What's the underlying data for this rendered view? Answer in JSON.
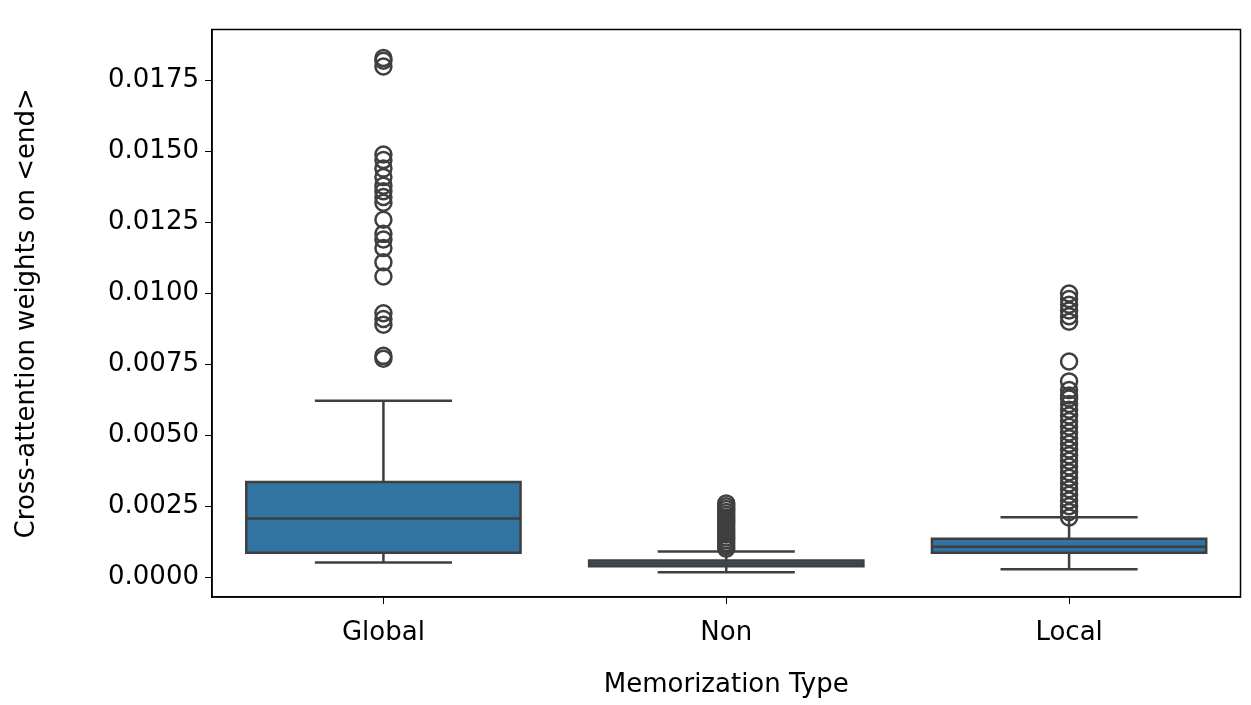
{
  "chart_data": {
    "type": "box",
    "xlabel": "Memorization Type",
    "ylabel": "Cross-attention weights on <end>",
    "categories": [
      "Global",
      "Non",
      "Local"
    ],
    "color": "#3274a1",
    "boxes": [
      {
        "low": 0.00052,
        "q1": 0.00086,
        "median": 0.00207,
        "q3": 0.00335,
        "high": 0.00622,
        "outliers": [
          0.0077,
          0.0078,
          0.0089,
          0.0091,
          0.0093,
          0.0106,
          0.0111,
          0.0116,
          0.0119,
          0.0121,
          0.0126,
          0.0132,
          0.0134,
          0.0136,
          0.0138,
          0.0141,
          0.0144,
          0.0147,
          0.0149,
          0.018,
          0.0182,
          0.0183
        ]
      },
      {
        "low": 0.00017,
        "q1": 0.00038,
        "median": 0.00048,
        "q3": 0.00059,
        "high": 0.0009,
        "outliers": [
          0.001,
          0.0011,
          0.0012,
          0.0013,
          0.0014,
          0.0015,
          0.0016,
          0.0017,
          0.0018,
          0.0019,
          0.002,
          0.0021,
          0.0022,
          0.0023,
          0.0024,
          0.0025,
          0.0026
        ]
      },
      {
        "low": 0.00028,
        "q1": 0.00086,
        "median": 0.00107,
        "q3": 0.00135,
        "high": 0.00211,
        "outliers": [
          0.0021,
          0.0023,
          0.0025,
          0.0027,
          0.0029,
          0.0031,
          0.0033,
          0.0035,
          0.0037,
          0.0039,
          0.0041,
          0.0043,
          0.0045,
          0.0047,
          0.0049,
          0.0051,
          0.0053,
          0.0055,
          0.0057,
          0.0059,
          0.0061,
          0.0063,
          0.0064,
          0.0066,
          0.0069,
          0.0076,
          0.009,
          0.0092,
          0.0094,
          0.0096,
          0.0098,
          0.01
        ]
      }
    ],
    "ylim": [
      -0.0007,
      0.0193
    ],
    "yticks": [
      {
        "value": 0,
        "label": "0.0000"
      },
      {
        "value": 0.0025,
        "label": "0.0025"
      },
      {
        "value": 0.005,
        "label": "0.0050"
      },
      {
        "value": 0.0075,
        "label": "0.0075"
      },
      {
        "value": 0.01,
        "label": "0.0100"
      },
      {
        "value": 0.0125,
        "label": "0.0125"
      },
      {
        "value": 0.015,
        "label": "0.0150"
      },
      {
        "value": 0.0175,
        "label": "0.0175"
      }
    ],
    "grid": false,
    "legend": false,
    "marker": "circle"
  }
}
